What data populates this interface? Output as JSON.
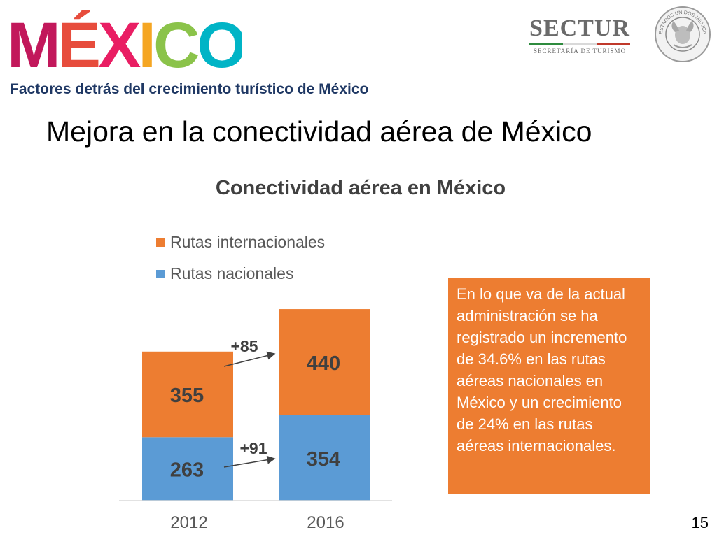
{
  "header": {
    "brand_logo_text": "MÉXICO",
    "agency_name": "SECTUR",
    "agency_subtitle": "SECRETARÍA DE TURISMO",
    "seal_text": "ESTADOS UNIDOS MEXICANOS"
  },
  "subtitle": "Factores detrás del crecimiento turístico de México",
  "headline": "Mejora en la conectividad aérea de México",
  "callout_text": "En lo que va de la actual administración se ha registrado un incremento de 34.6% en las rutas aéreas nacionales en México y un crecimiento de 24% en las rutas aéreas internacionales.",
  "page_number": "15",
  "colors": {
    "nacionales": "#5b9bd5",
    "internacionales": "#ed7d31",
    "callout_bg": "#ed7d31",
    "subtitle": "#1f3864"
  },
  "chart_data": {
    "type": "bar",
    "stacked": true,
    "title": "Conectividad aérea en México",
    "categories": [
      "2012",
      "2016"
    ],
    "series": [
      {
        "name": "Rutas nacionales",
        "values": [
          263,
          354
        ]
      },
      {
        "name": "Rutas internacionales",
        "values": [
          355,
          440
        ]
      }
    ],
    "legend_order": [
      "Rutas internacionales",
      "Rutas nacionales"
    ],
    "legend_position": "top-left",
    "annotations": [
      {
        "label": "+91",
        "series": "Rutas nacionales",
        "from": "2012",
        "to": "2016"
      },
      {
        "label": "+85",
        "series": "Rutas internacionales",
        "from": "2012",
        "to": "2016"
      }
    ],
    "ylim": [
      0,
      800
    ],
    "grid": false,
    "xlabel": "",
    "ylabel": ""
  }
}
